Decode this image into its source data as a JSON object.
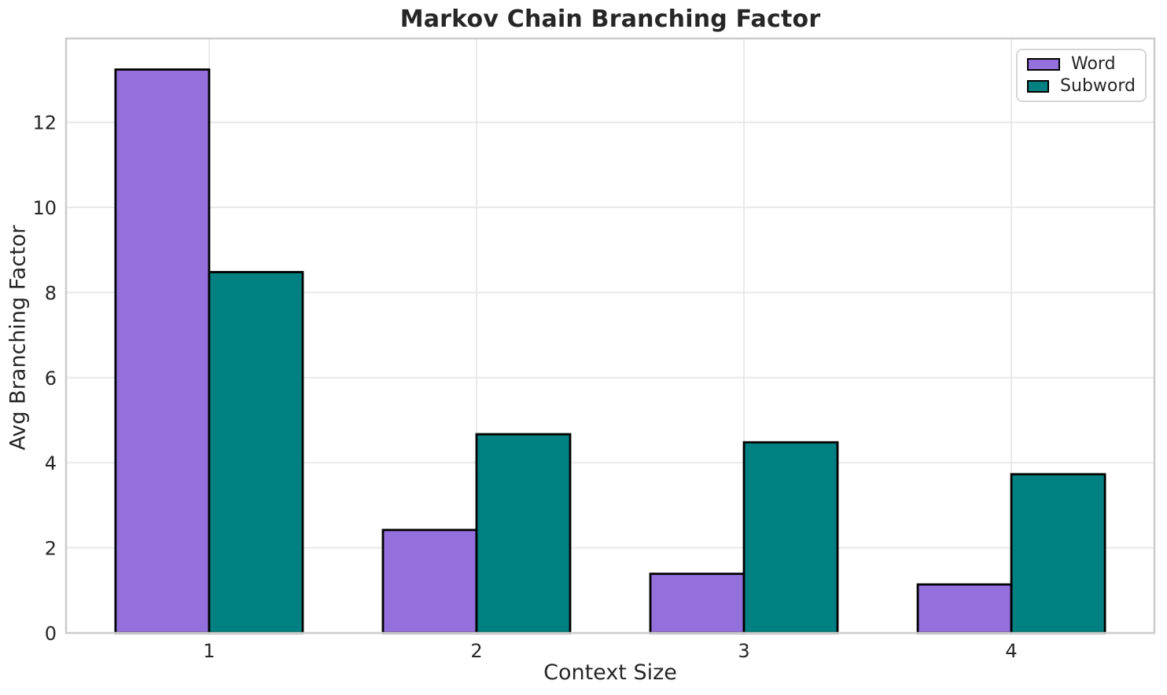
{
  "chart_data": {
    "type": "bar",
    "title": "Markov Chain Branching Factor",
    "xlabel": "Context Size",
    "ylabel": "Avg Branching Factor",
    "categories": [
      "1",
      "2",
      "3",
      "4"
    ],
    "x": [
      1,
      2,
      3,
      4
    ],
    "series": [
      {
        "name": "Word",
        "color": "#9370DB",
        "values": [
          13.24,
          2.42,
          1.39,
          1.14
        ]
      },
      {
        "name": "Subword",
        "color": "#008080",
        "values": [
          8.48,
          4.67,
          4.48,
          3.73
        ]
      }
    ],
    "bar_width": 0.35,
    "bar_edge_color": "#000000",
    "ylim": [
      0,
      13.97
    ],
    "xlim": [
      0.465,
      4.535
    ],
    "yticks": [
      0,
      2,
      4,
      6,
      8,
      10,
      12
    ],
    "grid": true,
    "grid_color": "#e9e9e9",
    "spine_color": "#cccccc",
    "legend_position": "upper right"
  }
}
